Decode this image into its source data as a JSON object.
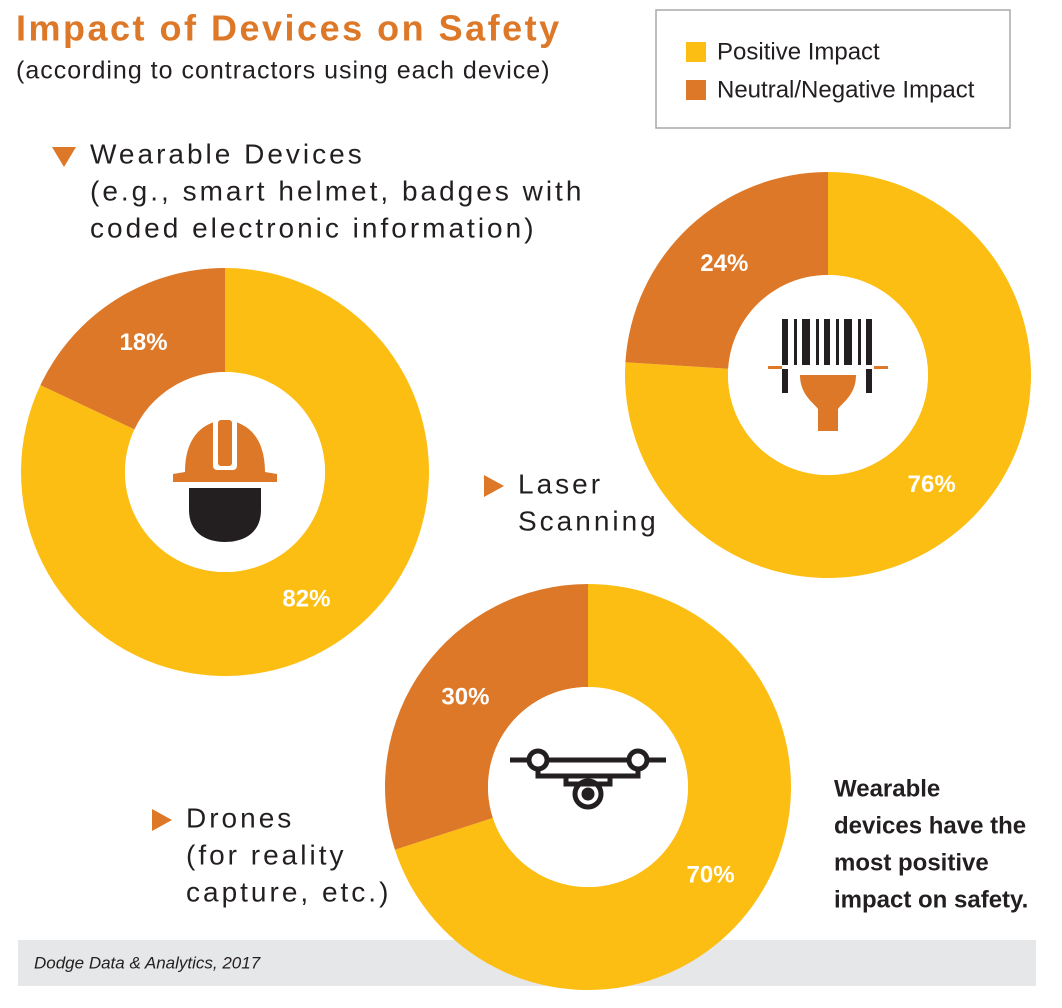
{
  "title": "Impact of Devices on Safety",
  "subtitle": "(according to contractors using each device)",
  "note": [
    "Wearable",
    "devices have the",
    "most positive",
    "impact on safety."
  ],
  "source": "Dodge Data & Analytics, 2017",
  "chart_data": [
    {
      "type": "pie",
      "donut": true,
      "label": [
        "Wearable Devices",
        "(e.g., smart helmet, badges with",
        "coded electronic information)"
      ],
      "categories": [
        "Positive Impact",
        "Neutral/Negative Impact"
      ],
      "values": [
        82,
        18
      ],
      "value_labels": [
        "82%",
        "18%"
      ],
      "colors": [
        "#fdbe13",
        "#dd7828"
      ],
      "legend": "top-right"
    },
    {
      "type": "pie",
      "donut": true,
      "label": [
        "Laser",
        "Scanning"
      ],
      "categories": [
        "Positive Impact",
        "Neutral/Negative Impact"
      ],
      "values": [
        76,
        24
      ],
      "value_labels": [
        "76%",
        "24%"
      ],
      "colors": [
        "#fdbe13",
        "#dd7828"
      ]
    },
    {
      "type": "pie",
      "donut": true,
      "label": [
        "Drones",
        "(for reality",
        "capture, etc.)"
      ],
      "categories": [
        "Positive Impact",
        "Neutral/Negative Impact"
      ],
      "values": [
        70,
        30
      ],
      "value_labels": [
        "70%",
        "30%"
      ],
      "colors": [
        "#fdbe13",
        "#dd7828"
      ]
    }
  ]
}
